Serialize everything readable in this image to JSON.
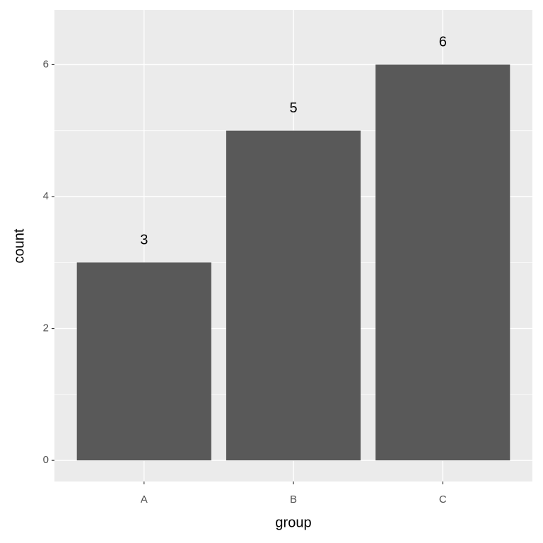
{
  "chart_data": {
    "type": "bar",
    "x_label": "group",
    "y_label": "count",
    "categories": [
      "A",
      "B",
      "C"
    ],
    "values": [
      3,
      5,
      6
    ],
    "color": "#595959",
    "ylim": [
      -0.32,
      6.83
    ],
    "yticks": [
      0,
      2,
      4,
      6
    ],
    "minor_yticks": [
      1,
      3,
      5
    ],
    "grid": true
  }
}
